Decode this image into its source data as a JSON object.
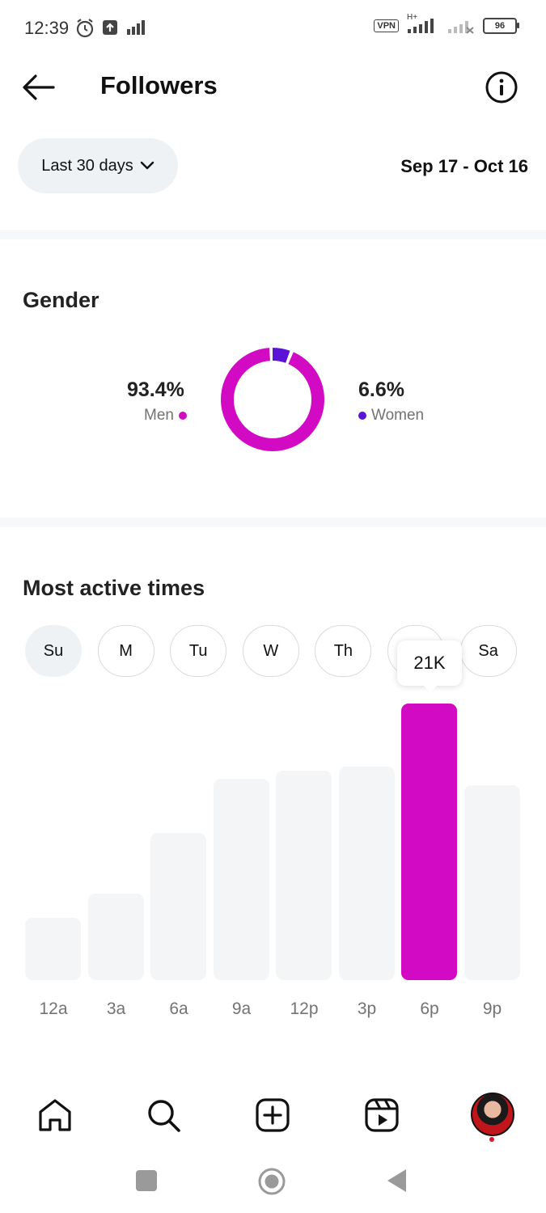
{
  "status_bar": {
    "time": "12:39",
    "vpn": "VPN",
    "network": "H+",
    "battery": "96"
  },
  "header": {
    "title": "Followers"
  },
  "filter": {
    "range_label": "Last 30 days",
    "date_range": "Sep 17 - Oct 16"
  },
  "gender": {
    "title": "Gender",
    "men_pct": "93.4%",
    "men_label": "Men",
    "women_pct": "6.6%",
    "women_label": "Women",
    "men_color": "#d20ac4",
    "women_color": "#5b14d6"
  },
  "active_times": {
    "title": "Most active times",
    "days": [
      "Su",
      "M",
      "Tu",
      "W",
      "Th",
      "F",
      "Sa"
    ],
    "selected_day": "Su",
    "tooltip": "21K"
  },
  "chart_data": {
    "type": "bar",
    "categories": [
      "12a",
      "3a",
      "6a",
      "9a",
      "12p",
      "3p",
      "6p",
      "9p"
    ],
    "values": [
      4.7,
      6.6,
      11.2,
      15.3,
      15.9,
      16.2,
      21,
      14.8
    ],
    "highlighted": "6p",
    "highlight_color": "#d20ac4",
    "bar_color": "#f4f5f7",
    "ylim": [
      0,
      21
    ]
  },
  "nav": {
    "items": [
      "home-icon",
      "search-icon",
      "create-icon",
      "reels-icon",
      "profile-avatar"
    ]
  }
}
